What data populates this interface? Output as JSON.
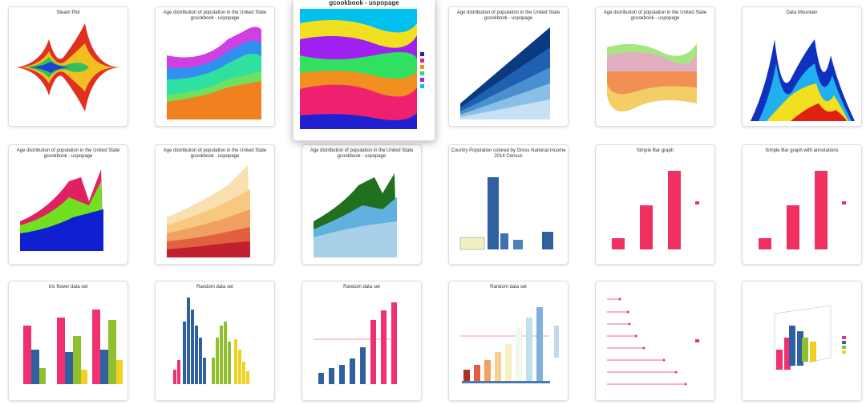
{
  "tiles": [
    {
      "title": "Steam Plot"
    },
    {
      "title": "Age distribution of population in the United State",
      "subtitle": "gcookbook - uspopage"
    },
    {
      "title": "gcookbook - uspopage"
    },
    {
      "title": "Age distribution of population in the United State",
      "subtitle": "gcookbook - uspopage"
    },
    {
      "title": "Age distribution of population in the United State",
      "subtitle": "gcookbook - uspopage"
    },
    {
      "title": "Data Mountain"
    },
    {
      "title": "Age distribution of population in the United State",
      "subtitle": "gcookbook - uspopage"
    },
    {
      "title": "Age distribution of population in the United State",
      "subtitle": "gcookbook - uspopage"
    },
    {
      "title": "Age distribution of population in the United State",
      "subtitle": "gcookbook - uspopage"
    },
    {
      "title": "Country Population colored by Gross National Income",
      "subtitle": "2014 Census"
    },
    {
      "title": "Simple Bar graph"
    },
    {
      "title": "Simple Bar graph with annotations"
    },
    {
      "title": "Iris flower data set"
    },
    {
      "title": "Random data set"
    },
    {
      "title": "Random data set"
    },
    {
      "title": "Random data set"
    },
    {
      "title": ""
    },
    {
      "title": ""
    }
  ]
}
